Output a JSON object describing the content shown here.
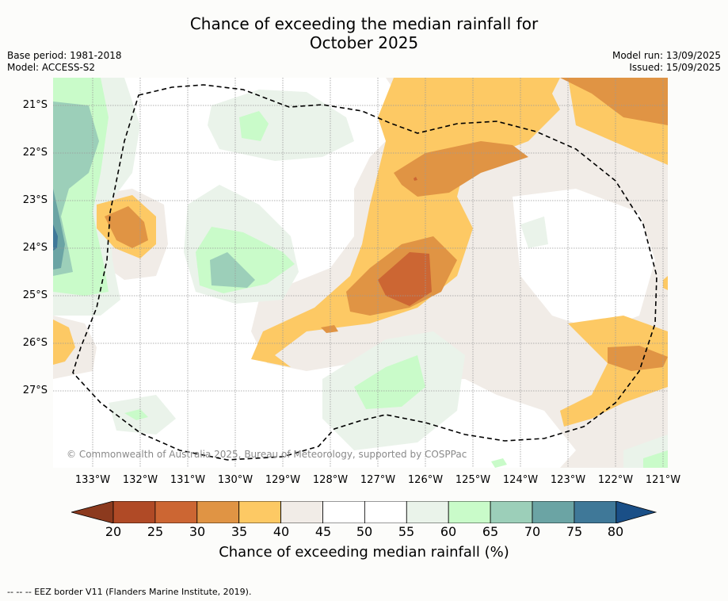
{
  "title_line1": "Chance of exceeding the median rainfall for",
  "title_line2": "October 2025",
  "base_period": "Base period: 1981-2018",
  "model": "Model: ACCESS-S2",
  "model_run": "Model run: 13/09/2025",
  "issued": "Issued: 15/09/2025",
  "copyright": "© Commonwealth of Australia 2025, Bureau of Meteorology, supported by COSPPac",
  "lat_labels": [
    "21°S",
    "22°S",
    "23°S",
    "24°S",
    "25°S",
    "26°S",
    "27°S"
  ],
  "lon_labels": [
    "133°W",
    "132°W",
    "131°W",
    "130°W",
    "129°W",
    "128°W",
    "127°W",
    "126°W",
    "125°W",
    "124°W",
    "123°W",
    "122°W",
    "121°W"
  ],
  "colorbar": {
    "ticks": [
      "20",
      "25",
      "30",
      "35",
      "40",
      "45",
      "50",
      "55",
      "60",
      "65",
      "70",
      "75",
      "80"
    ],
    "label": "Chance of exceeding median rainfall (%)",
    "colors": [
      "#8c3a1e",
      "#b04a26",
      "#cc6633",
      "#e09444",
      "#fdc964",
      "#f1ece7",
      "#ffffff",
      "#ffffff",
      "#eaf3ea",
      "#c9fbc9",
      "#9ccfb9",
      "#6ba4a4",
      "#3f7898",
      "#1a4f87"
    ]
  },
  "footer": "--  --  -- EEZ border V11 (Flanders Marine Institute, 2019)."
}
